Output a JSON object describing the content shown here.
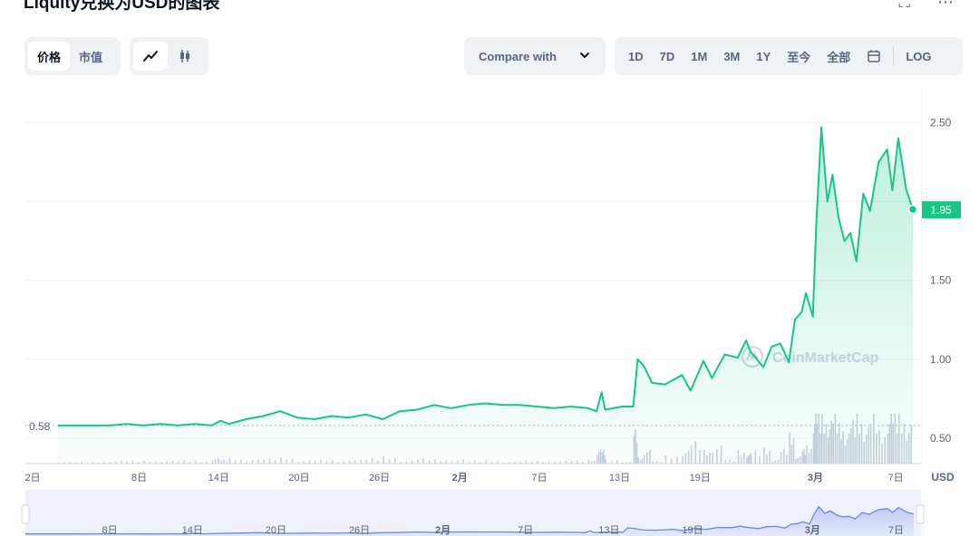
{
  "header": {
    "title": "Liquity兑换为USD的图表",
    "expand_icon": "expand-icon",
    "more_icon": "more-icon"
  },
  "toolbar": {
    "mode_tabs": [
      "价格",
      "市值"
    ],
    "compare_label": "Compare with",
    "ranges": [
      "1D",
      "7D",
      "1M",
      "3M",
      "1Y",
      "至今",
      "全部"
    ],
    "log_label": "LOG"
  },
  "watermark": "CoinMarketCap",
  "colors": {
    "line": "#16c784",
    "accent_fill": "#16c784",
    "navigator": "#6f86e6"
  },
  "chart_data": {
    "type": "line",
    "currency": "USD",
    "start_label": "0.58",
    "current_label": "1.95",
    "y_ticks": [
      "2.50",
      "1.50",
      "1.00",
      "0.50"
    ],
    "ylim": [
      0.35,
      2.6
    ],
    "x_labels": [
      "2日",
      "8日",
      "14日",
      "20日",
      "26日",
      "2月",
      "7日",
      "13日",
      "19日",
      "3月",
      "7日"
    ],
    "nav_x_labels": [
      "8日",
      "14日",
      "20日",
      "26日",
      "2月",
      "7日",
      "13日",
      "19日",
      "3月",
      "7日"
    ],
    "x_range": [
      0,
      100
    ],
    "x_label_positions": [
      0,
      9.5,
      18.8,
      28.2,
      37.6,
      47.0,
      56.3,
      65.7,
      75.1,
      88.6,
      98.0
    ],
    "series": [
      {
        "x": [
          0,
          2,
          4,
          6,
          8,
          10,
          12,
          14,
          16,
          18,
          19,
          20,
          22,
          24,
          26,
          28,
          30,
          32,
          34,
          36,
          38,
          40,
          42,
          44,
          46,
          48,
          50,
          52,
          54,
          56,
          58,
          60,
          62,
          63,
          63.6,
          64,
          66,
          67.3,
          67.8,
          68.5,
          69.5,
          71,
          73,
          74,
          75.5,
          76.5,
          78,
          79.5,
          80.5,
          81,
          82.5,
          83.5,
          84.5,
          85.5,
          86.2,
          87,
          87.5,
          88.3,
          88.7,
          89.3,
          90,
          90.6,
          91.3,
          92,
          92.7,
          93.4,
          94.2,
          95,
          96,
          97,
          97.6,
          98.3,
          99.2,
          100
        ],
        "values": [
          0.58,
          0.58,
          0.58,
          0.58,
          0.59,
          0.58,
          0.59,
          0.58,
          0.59,
          0.58,
          0.61,
          0.59,
          0.62,
          0.64,
          0.67,
          0.63,
          0.62,
          0.64,
          0.63,
          0.65,
          0.62,
          0.67,
          0.68,
          0.71,
          0.69,
          0.71,
          0.72,
          0.71,
          0.71,
          0.7,
          0.69,
          0.7,
          0.69,
          0.67,
          0.79,
          0.68,
          0.7,
          0.7,
          1.0,
          0.96,
          0.85,
          0.84,
          0.9,
          0.8,
          0.99,
          0.88,
          1.03,
          1.01,
          1.12,
          1.05,
          0.95,
          1.08,
          1.1,
          0.98,
          1.25,
          1.3,
          1.42,
          1.27,
          1.85,
          2.47,
          2.0,
          2.17,
          1.9,
          1.75,
          1.8,
          1.62,
          2.05,
          1.94,
          2.25,
          2.33,
          2.07,
          2.4,
          2.08,
          1.95
        ]
      }
    ]
  }
}
